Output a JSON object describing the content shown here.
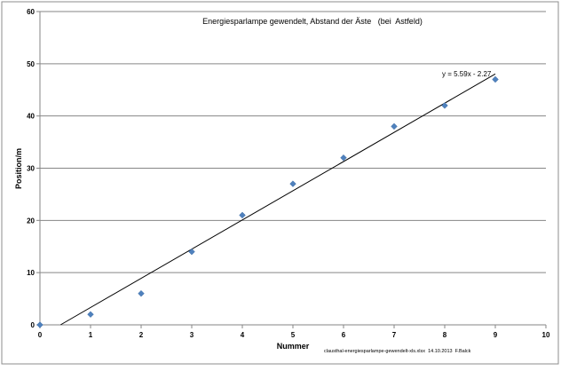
{
  "chart_data": {
    "type": "scatter",
    "title": "Energiesparlampe gewendelt, Abstand der Äste   (bei  Astfeld)",
    "xlabel": "Nummer",
    "ylabel": "Position/m",
    "xlim": [
      0,
      10
    ],
    "ylim": [
      0,
      60
    ],
    "xticks": [
      "0",
      "1",
      "2",
      "3",
      "4",
      "5",
      "6",
      "7",
      "8",
      "9",
      "10"
    ],
    "yticks": [
      "0",
      "10",
      "20",
      "30",
      "40",
      "50",
      "60"
    ],
    "x": [
      0,
      1,
      2,
      3,
      4,
      5,
      6,
      7,
      8,
      9
    ],
    "y": [
      0,
      2,
      6,
      14,
      21,
      27,
      32,
      38,
      42,
      47
    ],
    "trendline": {
      "slope": 5.59,
      "intercept": -2.27,
      "x_from": 0.41,
      "x_to": 9,
      "label": "y = 5.59x - 2.27"
    },
    "grid": "horizontal",
    "marker_color": "#4f81bd",
    "footer": "clausthal-energiesparlampe-gewendelt-xls.xlsx  14.10.2013  F.Balck"
  }
}
